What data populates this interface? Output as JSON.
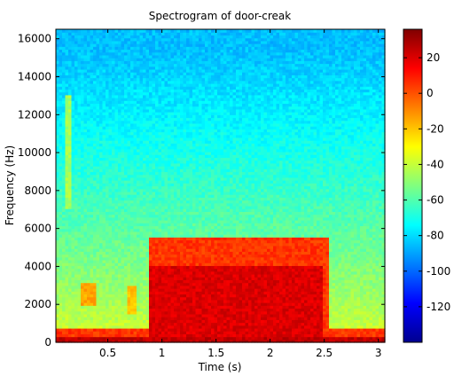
{
  "chart_data": {
    "type": "heatmap",
    "title": "Spectrogram of door-creak",
    "xlabel": "Time (s)",
    "ylabel": "Frequency (Hz)",
    "xlim": [
      0.02,
      3.06
    ],
    "ylim": [
      0,
      16500
    ],
    "x_ticks": [
      0.5,
      1,
      1.5,
      2,
      2.5,
      3
    ],
    "x_tick_labels": [
      "0.5",
      "1",
      "1.5",
      "2",
      "2.5",
      "3"
    ],
    "y_ticks": [
      0,
      2000,
      4000,
      6000,
      8000,
      10000,
      12000,
      14000,
      16000
    ],
    "y_tick_labels": [
      "0",
      "2000",
      "4000",
      "6000",
      "8000",
      "10000",
      "12000",
      "14000",
      "16000"
    ],
    "colormap": "jet",
    "clim": [
      -140,
      36
    ],
    "colorbar_ticks": [
      20,
      0,
      -20,
      -40,
      -60,
      -80,
      -100,
      -120
    ],
    "colorbar_tick_labels": [
      "20",
      "0",
      "-20",
      "-40",
      "-60",
      "-80",
      "-100",
      "-120"
    ],
    "grid": false,
    "regions": [
      {
        "t_start": 0.02,
        "t_end": 3.06,
        "f_low": 0,
        "f_high": 16500,
        "level_db": -65,
        "note": "background: level falls from about -35 dB near 0 Hz to about -85 dB near 15 kHz"
      },
      {
        "t_start": 0.88,
        "t_end": 2.55,
        "f_low": 0,
        "f_high": 5500,
        "level_db": 5,
        "note": "creak event"
      },
      {
        "t_start": 0.88,
        "t_end": 2.5,
        "f_low": 0,
        "f_high": 4000,
        "level_db": 20,
        "note": "strongest band"
      },
      {
        "t_start": 0.02,
        "t_end": 3.06,
        "f_low": 0,
        "f_high": 300,
        "level_db": 25,
        "note": "low-frequency floor"
      }
    ]
  }
}
